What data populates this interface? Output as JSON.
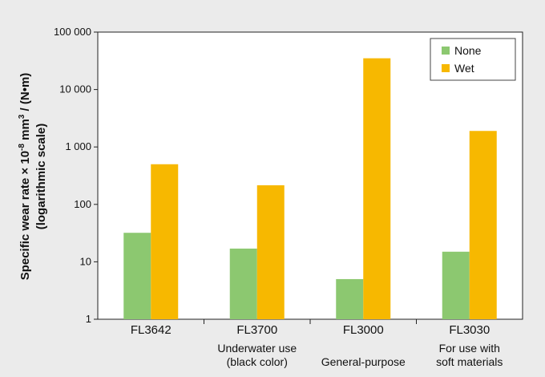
{
  "chart_data": {
    "type": "bar",
    "yscale": "log",
    "ylim": [
      1,
      100000
    ],
    "yticks": [
      1,
      10,
      100,
      1000,
      10000,
      100000
    ],
    "ytick_labels": [
      "1",
      "10",
      "100",
      "1 000",
      "10 000",
      "100 000"
    ],
    "ylabel_line1": "Specific wear rate × 10",
    "ylabel_sup1": "-8",
    "ylabel_mid": " mm",
    "ylabel_sup2": "3",
    "ylabel_end": " / (N•m)",
    "ylabel_line2": "(logarithmic scale)",
    "categories": [
      "FL3642",
      "FL3700",
      "FL3000",
      "FL3030"
    ],
    "category_sublabels": [
      [
        "",
        ""
      ],
      [
        "Underwater use",
        "(black color)"
      ],
      [
        "",
        "General-purpose"
      ],
      [
        "For use with",
        "soft materials"
      ]
    ],
    "series": [
      {
        "name": "None",
        "color": "#8cc870",
        "values": [
          32,
          17,
          5,
          15
        ]
      },
      {
        "name": "Wet",
        "color": "#f7b800",
        "values": [
          500,
          215,
          35000,
          1900
        ]
      }
    ],
    "legend_position": "top-right",
    "grid": false
  }
}
